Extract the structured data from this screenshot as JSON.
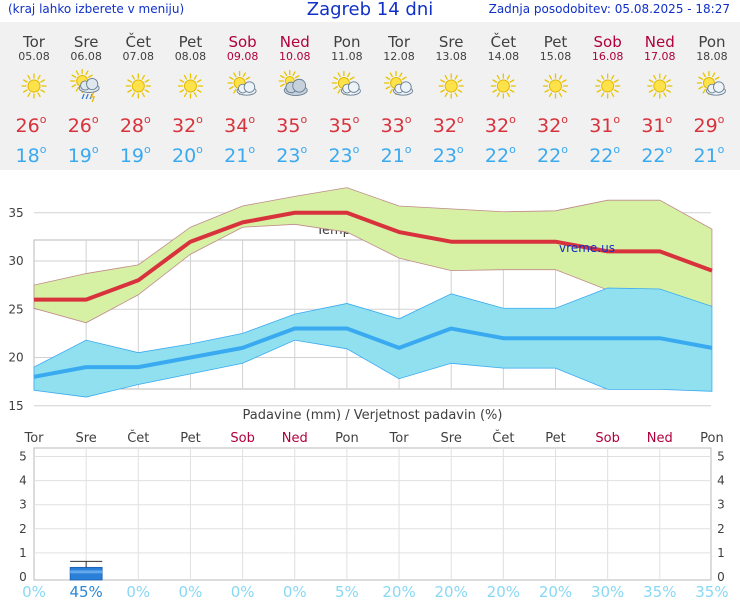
{
  "header": {
    "left_note": "(kraj lahko izberete v meniju)",
    "title": "Zagreb 14 dni",
    "updated": "Zadnja posodobitev: 05.08.2025 - 18:27"
  },
  "colors": {
    "weekday": "#404040",
    "weekend": "#b0003a",
    "tmax": "#d8323c",
    "tmin": "#3aaaf0",
    "prob": "#88d8f4",
    "prob_active": "#2a88d8"
  },
  "days": [
    {
      "name": "Tor",
      "date": "05.08",
      "weekend": false,
      "icon": "sun-icon",
      "tmax": "26",
      "tmin": "18",
      "prob": "0%"
    },
    {
      "name": "Sre",
      "date": "06.08",
      "weekend": false,
      "icon": "sun-cloud-rain-icon",
      "tmax": "26",
      "tmin": "19",
      "prob": "45%"
    },
    {
      "name": "Čet",
      "date": "07.08",
      "weekend": false,
      "icon": "sun-icon",
      "tmax": "28",
      "tmin": "19",
      "prob": "0%"
    },
    {
      "name": "Pet",
      "date": "08.08",
      "weekend": false,
      "icon": "sun-icon",
      "tmax": "32",
      "tmin": "20",
      "prob": "0%"
    },
    {
      "name": "Sob",
      "date": "09.08",
      "weekend": true,
      "icon": "sun-cloud-icon",
      "tmax": "34",
      "tmin": "21",
      "prob": "0%"
    },
    {
      "name": "Ned",
      "date": "10.08",
      "weekend": true,
      "icon": "cloud-sun-icon",
      "tmax": "35",
      "tmin": "23",
      "prob": "0%"
    },
    {
      "name": "Pon",
      "date": "11.08",
      "weekend": false,
      "icon": "sun-cloud-icon",
      "tmax": "35",
      "tmin": "23",
      "prob": "5%"
    },
    {
      "name": "Tor",
      "date": "12.08",
      "weekend": false,
      "icon": "sun-cloud-icon",
      "tmax": "33",
      "tmin": "21",
      "prob": "20%"
    },
    {
      "name": "Sre",
      "date": "13.08",
      "weekend": false,
      "icon": "sun-icon",
      "tmax": "32",
      "tmin": "23",
      "prob": "20%"
    },
    {
      "name": "Čet",
      "date": "14.08",
      "weekend": false,
      "icon": "sun-icon",
      "tmax": "32",
      "tmin": "22",
      "prob": "20%"
    },
    {
      "name": "Pet",
      "date": "15.08",
      "weekend": false,
      "icon": "sun-icon",
      "tmax": "32",
      "tmin": "22",
      "prob": "20%"
    },
    {
      "name": "Sob",
      "date": "16.08",
      "weekend": true,
      "icon": "sun-icon",
      "tmax": "31",
      "tmin": "22",
      "prob": "30%"
    },
    {
      "name": "Ned",
      "date": "17.08",
      "weekend": true,
      "icon": "sun-icon",
      "tmax": "31",
      "tmin": "22",
      "prob": "35%"
    },
    {
      "name": "Pon",
      "date": "18.08",
      "weekend": false,
      "icon": "sun-cloud-icon",
      "tmax": "29",
      "tmin": "21",
      "prob": "35%"
    }
  ],
  "chart_data": [
    {
      "type": "line",
      "title": "Temperatura (°C)",
      "watermark": "vreme.us",
      "categories": [
        "Tor",
        "Sre",
        "Čet",
        "Pet",
        "Sob",
        "Ned",
        "Pon",
        "Tor",
        "Sre",
        "Čet",
        "Pet",
        "Sob",
        "Ned",
        "Pon"
      ],
      "ylim": [
        15,
        38
      ],
      "yticks": [
        15,
        20,
        25,
        30,
        35
      ],
      "grid": true,
      "series": [
        {
          "values": [
            26,
            26,
            28,
            32,
            34,
            35,
            35,
            33,
            32,
            32,
            32,
            31,
            31,
            29
          ]
        },
        {
          "values": [
            18,
            19,
            19,
            20,
            21,
            23,
            23,
            21,
            23,
            22,
            22,
            22,
            22,
            21
          ]
        }
      ],
      "max_band": {
        "upper": [
          27.5,
          28.7,
          29.6,
          33.5,
          35.7,
          36.7,
          37.6,
          35.7,
          35.4,
          35.1,
          35.2,
          36.3,
          36.3,
          33.3
        ],
        "lower": [
          25.1,
          23.6,
          26.5,
          30.7,
          33.5,
          33.8,
          33.0,
          30.3,
          29.0,
          29.1,
          29.1,
          27.0,
          26.7,
          25.3
        ]
      },
      "min_band": {
        "upper": [
          19.0,
          21.8,
          20.5,
          21.4,
          22.5,
          24.5,
          25.6,
          24.0,
          26.6,
          25.1,
          25.1,
          27.2,
          27.1,
          25.3
        ],
        "lower": [
          16.6,
          15.9,
          17.2,
          18.3,
          19.4,
          21.8,
          20.9,
          17.8,
          19.4,
          18.9,
          18.9,
          16.7,
          16.7,
          16.5
        ]
      }
    },
    {
      "type": "bar",
      "title": "Padavine (mm) / Verjetnost padavin (%)",
      "categories": [
        "Tor",
        "Sre",
        "Čet",
        "Pet",
        "Sob",
        "Ned",
        "Pon",
        "Tor",
        "Sre",
        "Čet",
        "Pet",
        "Sob",
        "Ned",
        "Pon"
      ],
      "ylim": [
        0,
        5
      ],
      "yticks": [
        0,
        1,
        2,
        3,
        4,
        5
      ],
      "values": [
        0,
        0.4,
        0,
        0,
        0,
        0,
        0,
        0,
        0,
        0,
        0,
        0,
        0,
        0
      ],
      "error_high": [
        0,
        0.65,
        0,
        0,
        0,
        0,
        0,
        0,
        0,
        0,
        0,
        0,
        0,
        0
      ],
      "probability": [
        "0%",
        "45%",
        "0%",
        "0%",
        "0%",
        "0%",
        "5%",
        "20%",
        "20%",
        "20%",
        "20%",
        "30%",
        "35%",
        "35%"
      ]
    }
  ]
}
